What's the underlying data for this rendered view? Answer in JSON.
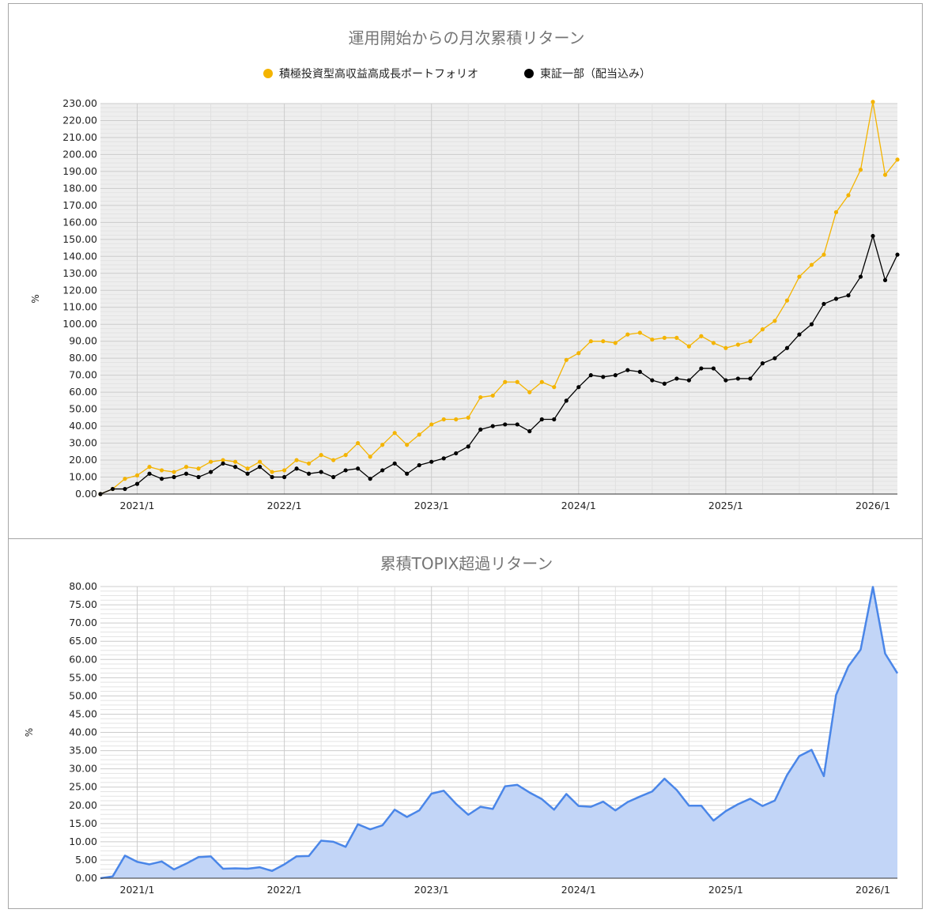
{
  "chart_data": [
    {
      "type": "line",
      "title": "運用開始からの月次累積リターン",
      "ylabel": "%",
      "xlabel": "",
      "ylim": [
        0,
        230
      ],
      "y_ticks": [
        "0.00",
        "10.00",
        "20.00",
        "30.00",
        "40.00",
        "50.00",
        "60.00",
        "70.00",
        "80.00",
        "90.00",
        "100.00",
        "110.00",
        "120.00",
        "130.00",
        "140.00",
        "150.00",
        "160.00",
        "170.00",
        "180.00",
        "190.00",
        "200.00",
        "210.00",
        "220.00",
        "230.00"
      ],
      "x_ticks": [
        "2021/1",
        "2022/1",
        "2023/1",
        "2024/1",
        "2025/1",
        "2026/1"
      ],
      "x_start": "2020/10",
      "legend": "top",
      "grid": true,
      "series": [
        {
          "name": "積極投資型高収益高成長ポートフォリオ",
          "color": "#F4B400",
          "values": [
            0,
            3,
            9,
            11,
            16,
            14,
            13,
            16,
            15,
            19,
            20,
            19,
            15,
            19,
            13,
            14,
            20,
            18,
            23,
            20,
            23,
            30,
            22,
            29,
            36,
            29,
            35,
            41,
            44,
            44,
            45,
            57,
            58,
            66,
            66,
            60,
            66,
            63,
            79,
            83,
            90,
            90,
            89,
            94,
            95,
            91,
            92,
            92,
            87,
            93,
            89,
            86,
            88,
            90,
            97,
            102,
            114,
            128,
            135,
            141,
            166,
            176,
            191,
            231,
            188,
            197
          ]
        },
        {
          "name": "東証一部（配当込み）",
          "color": "#000000",
          "values": [
            0,
            3,
            3,
            6,
            12,
            9,
            10,
            12,
            10,
            13,
            18,
            16,
            12,
            16,
            10,
            10,
            15,
            12,
            13,
            10,
            14,
            15,
            9,
            14,
            18,
            12,
            17,
            19,
            21,
            24,
            28,
            38,
            40,
            41,
            41,
            37,
            44,
            44,
            55,
            63,
            70,
            69,
            70,
            73,
            72,
            67,
            65,
            68,
            67,
            74,
            74,
            67,
            68,
            68,
            77,
            80,
            86,
            94,
            100,
            112,
            115,
            117,
            128,
            152,
            126,
            141
          ]
        }
      ]
    },
    {
      "type": "area",
      "title": "累積TOPIX超過リターン",
      "ylabel": "%",
      "xlabel": "",
      "ylim": [
        0,
        80
      ],
      "y_ticks": [
        "0.00",
        "5.00",
        "10.00",
        "15.00",
        "20.00",
        "25.00",
        "30.00",
        "35.00",
        "40.00",
        "45.00",
        "50.00",
        "55.00",
        "60.00",
        "65.00",
        "70.00",
        "75.00",
        "80.00"
      ],
      "x_ticks": [
        "2021/1",
        "2022/1",
        "2023/1",
        "2024/1",
        "2025/1",
        "2026/1"
      ],
      "x_start": "2020/10",
      "grid": true,
      "series": [
        {
          "name": "",
          "color": "#4A86E8",
          "fill": "#C2D5F7",
          "values": [
            0,
            0.5,
            6.2,
            4.5,
            3.8,
            4.6,
            2.4,
            4,
            5.8,
            6,
            2.6,
            2.7,
            2.6,
            3,
            2,
            3.8,
            6,
            6.1,
            10.3,
            10,
            8.6,
            14.8,
            13.4,
            14.5,
            18.8,
            16.8,
            18.6,
            23.2,
            24,
            20.4,
            17.4,
            19.6,
            19,
            25.2,
            25.6,
            23.5,
            21.7,
            18.8,
            23.1,
            19.8,
            19.6,
            21,
            18.6,
            20.9,
            22.4,
            23.8,
            27.3,
            24.2,
            19.9,
            19.9,
            15.8,
            18.4,
            20.3,
            21.8,
            19.8,
            21.3,
            28.3,
            33.5,
            35.2,
            28,
            50.3,
            58.1,
            62.7,
            79.9,
            61.6,
            56.2
          ]
        }
      ]
    }
  ]
}
